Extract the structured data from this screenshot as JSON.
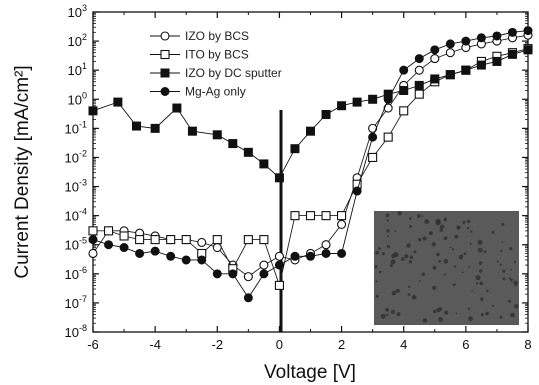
{
  "chart_data": {
    "type": "scatter",
    "title": "",
    "xlabel": "Voltage [V]",
    "ylabel": "Current Density [mA/cm²]",
    "xlim": [
      -6,
      8
    ],
    "ylim": [
      -8,
      3
    ],
    "ylim_linear": [
      1e-08,
      1000
    ],
    "yscale": "log",
    "x_ticks": [
      -6,
      -4,
      -2,
      0,
      2,
      4,
      6,
      8
    ],
    "x_tick_labels": [
      "-6",
      "-4",
      "-2",
      "0",
      "2",
      "4",
      "6",
      "8"
    ],
    "y_tick_exponents": [
      3,
      2,
      1,
      0,
      -1,
      -2,
      -3,
      -4,
      -5,
      -6,
      -7,
      -8
    ],
    "y_tick_mantissa": "10",
    "grid": false,
    "legend": "top-left",
    "series": [
      {
        "name": "IZO by BCS",
        "marker": "open-circle",
        "color": "#222222",
        "x": [
          -6,
          -5.5,
          -5,
          -4.5,
          -4,
          -3.5,
          -3,
          -2.5,
          -2,
          -1.5,
          -1,
          -0.5,
          0,
          0.5,
          1,
          1.5,
          2,
          2.5,
          3,
          3.5,
          4,
          4.5,
          5,
          5.5,
          6,
          6.5,
          7,
          7.5,
          8
        ],
        "y": [
          5e-06,
          3e-05,
          3e-05,
          2.5e-05,
          2e-05,
          1.5e-05,
          1.5e-05,
          1.2e-05,
          8e-06,
          2e-06,
          8e-07,
          2e-06,
          4e-06,
          3e-06,
          5e-06,
          1e-05,
          5e-05,
          0.002,
          0.1,
          0.5,
          3,
          10,
          25,
          40,
          60,
          80,
          100,
          130,
          160
        ]
      },
      {
        "name": "ITO by BCS",
        "marker": "open-square",
        "color": "#222222",
        "x": [
          -6,
          -5.5,
          -5,
          -4.5,
          -4,
          -3.5,
          -3,
          -2.5,
          -2,
          -1.5,
          -1,
          -0.5,
          0,
          0.5,
          1,
          1.5,
          2,
          2.5,
          3,
          3.5,
          4,
          4.5,
          5,
          5.5,
          6,
          6.5,
          7,
          7.5,
          8
        ],
        "y": [
          3e-05,
          3e-05,
          2e-05,
          1.5e-05,
          1.5e-05,
          1.5e-05,
          1.5e-05,
          5e-06,
          1.5e-05,
          1.5e-06,
          1.5e-05,
          1.5e-05,
          4e-07,
          0.0001,
          0.0001,
          0.0001,
          0.0001,
          0.0012,
          0.01,
          0.05,
          0.4,
          1.5,
          4,
          7,
          10,
          20,
          30,
          40,
          55
        ]
      },
      {
        "name": "IZO by DC sputter",
        "marker": "filled-square",
        "color": "#111111",
        "x": [
          -6,
          -5.2,
          -4.6,
          -4,
          -3.3,
          -2.8,
          -2,
          -1.5,
          -1,
          -0.5,
          0,
          0.5,
          1,
          1.5,
          2,
          2.5,
          3,
          3.5,
          4,
          4.5,
          5,
          5.5,
          6,
          6.5,
          7,
          7.5,
          8
        ],
        "y": [
          0.4,
          0.8,
          0.12,
          0.1,
          0.5,
          0.08,
          0.06,
          0.03,
          0.015,
          0.006,
          0.002,
          0.02,
          0.08,
          0.3,
          0.6,
          0.8,
          1,
          1.5,
          2,
          3,
          5,
          7,
          10,
          15,
          20,
          35,
          50
        ]
      },
      {
        "name": "Mg-Ag only",
        "marker": "filled-circle",
        "color": "#111111",
        "x": [
          -6,
          -5.5,
          -5,
          -4.5,
          -4,
          -3.5,
          -3,
          -2.5,
          -2,
          -1.5,
          -1,
          -0.5,
          0,
          0.5,
          1,
          1.5,
          2,
          2.5,
          3,
          3.5,
          4,
          4.5,
          5,
          5.5,
          6,
          6.5,
          7,
          7.5,
          8
        ],
        "y": [
          1.5e-05,
          1e-05,
          8e-06,
          5e-06,
          6e-06,
          4e-06,
          3e-06,
          3e-06,
          1e-06,
          1e-06,
          1.5e-07,
          1e-06,
          2e-06,
          4e-06,
          4e-06,
          5e-06,
          5e-06,
          0.0007,
          0.05,
          1,
          10,
          25,
          50,
          80,
          100,
          130,
          150,
          200,
          230
        ]
      }
    ]
  }
}
